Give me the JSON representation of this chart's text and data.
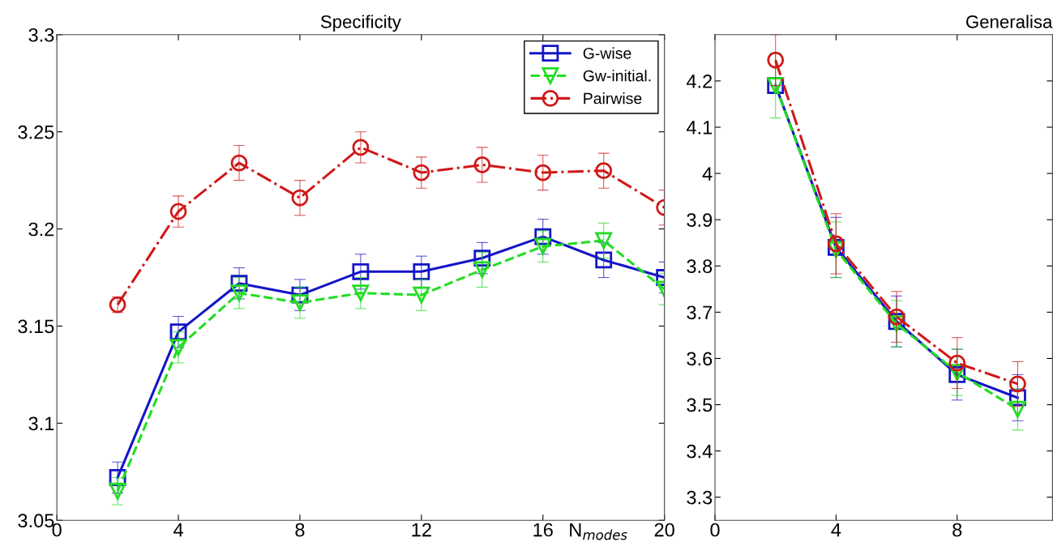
{
  "chart_data": [
    {
      "type": "line",
      "title": "Specificity",
      "xlabel": "N$_{modes}$",
      "x": [
        2,
        4,
        6,
        8,
        10,
        12,
        14,
        16,
        18,
        20
      ],
      "xlim": [
        0,
        20
      ],
      "xticks": [
        0,
        4,
        8,
        12,
        16,
        20
      ],
      "ylim": [
        3.05,
        3.3
      ],
      "yticks": [
        3.05,
        3.1,
        3.15,
        3.2,
        3.25,
        3.3
      ],
      "legend": "top right",
      "grid": false,
      "series": [
        {
          "name": "G-wise",
          "color": "#1414c8",
          "marker": "square",
          "line_style": "solid",
          "values": [
            3.072,
            3.147,
            3.172,
            3.166,
            3.178,
            3.178,
            3.185,
            3.196,
            3.184,
            3.175
          ],
          "errors": [
            0.008,
            0.008,
            0.008,
            0.008,
            0.009,
            0.008,
            0.008,
            0.009,
            0.009,
            0.008
          ]
        },
        {
          "name": "Gw-initial.",
          "color": "#22dd22",
          "marker": "triangle",
          "line_style": "dashed",
          "values": [
            3.065,
            3.139,
            3.167,
            3.162,
            3.167,
            3.166,
            3.179,
            3.191,
            3.194,
            3.169
          ],
          "errors": [
            0.007,
            0.008,
            0.008,
            0.008,
            0.008,
            0.008,
            0.009,
            0.008,
            0.009,
            0.008
          ]
        },
        {
          "name": "Pairwise",
          "color": "#d01818",
          "marker": "circle",
          "line_style": "dashdot",
          "values": [
            3.161,
            3.209,
            3.234,
            3.216,
            3.242,
            3.229,
            3.233,
            3.229,
            3.23,
            3.211
          ],
          "errors": [
            0.004,
            0.008,
            0.009,
            0.009,
            0.008,
            0.008,
            0.009,
            0.009,
            0.009,
            0.009
          ]
        }
      ]
    },
    {
      "type": "line",
      "title": "Generalisa",
      "x": [
        2,
        4,
        6,
        8,
        10
      ],
      "xlim": [
        0,
        11.15
      ],
      "xticks": [
        0,
        4,
        8
      ],
      "ylim": [
        3.25,
        4.3
      ],
      "yticks": [
        3.3,
        3.4,
        3.5,
        3.6,
        3.7,
        3.8,
        3.9,
        4,
        4.1,
        4.2
      ],
      "legend": false,
      "grid": false,
      "series": [
        {
          "color": "#1414c8",
          "marker": "square",
          "line_style": "solid",
          "values": [
            4.19,
            3.84,
            3.68,
            3.565,
            3.515
          ],
          "errors": [
            0.015,
            0.065,
            0.055,
            0.055,
            0.05
          ]
        },
        {
          "color": "#22dd22",
          "marker": "triangle",
          "line_style": "dashed",
          "values": [
            4.19,
            3.835,
            3.675,
            3.57,
            3.49
          ],
          "errors": [
            0.07,
            0.06,
            0.05,
            0.05,
            0.045
          ]
        },
        {
          "color": "#d01818",
          "marker": "circle",
          "line_style": "dashdot",
          "values": [
            4.245,
            3.848,
            3.69,
            3.59,
            3.545
          ],
          "errors": [
            0.055,
            0.065,
            0.055,
            0.055,
            0.048
          ]
        }
      ]
    }
  ]
}
